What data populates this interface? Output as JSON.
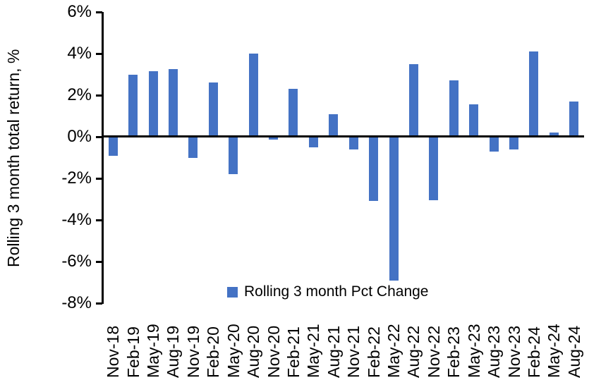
{
  "chart_data": {
    "type": "bar",
    "title": "",
    "ylabel": "Rolling 3 month total return, %",
    "xlabel": "",
    "categories": [
      "Nov-18",
      "Feb-19",
      "May-19",
      "Aug-19",
      "Nov-19",
      "Feb-20",
      "May-20",
      "Aug-20",
      "Nov-20",
      "Feb-21",
      "May-21",
      "Aug-21",
      "Nov-21",
      "Feb-22",
      "May-22",
      "Aug-22",
      "Nov-22",
      "Feb-23",
      "May-23",
      "Aug-23",
      "Nov-23",
      "Feb-24",
      "May-24",
      "Aug-24"
    ],
    "series": [
      {
        "name": "Rolling 3 month Pct Change",
        "values": [
          -0.9,
          3.0,
          3.15,
          3.25,
          -1.0,
          2.6,
          -1.8,
          4.0,
          -0.15,
          2.3,
          -0.5,
          1.1,
          -0.6,
          -3.1,
          -6.9,
          3.5,
          -3.05,
          2.7,
          1.55,
          -0.7,
          -0.6,
          4.1,
          0.2,
          1.7
        ]
      }
    ],
    "ylim": [
      -8,
      6
    ],
    "ytick_values": [
      6,
      4,
      2,
      0,
      -2,
      -4,
      -6,
      -8
    ],
    "ytick_labels": [
      "6%",
      "4%",
      "2%",
      "0%",
      "-2%",
      "-4%",
      "-6%",
      "-8%"
    ],
    "grid": false,
    "legend_position": "bottom-center-inside",
    "colors": {
      "bar": "#4472C4",
      "axis": "#000000",
      "text": "#000000",
      "background": "#FFFFFF"
    }
  },
  "legend": {
    "label": "Rolling 3 month Pct Change",
    "marker": "blue-square-icon"
  }
}
